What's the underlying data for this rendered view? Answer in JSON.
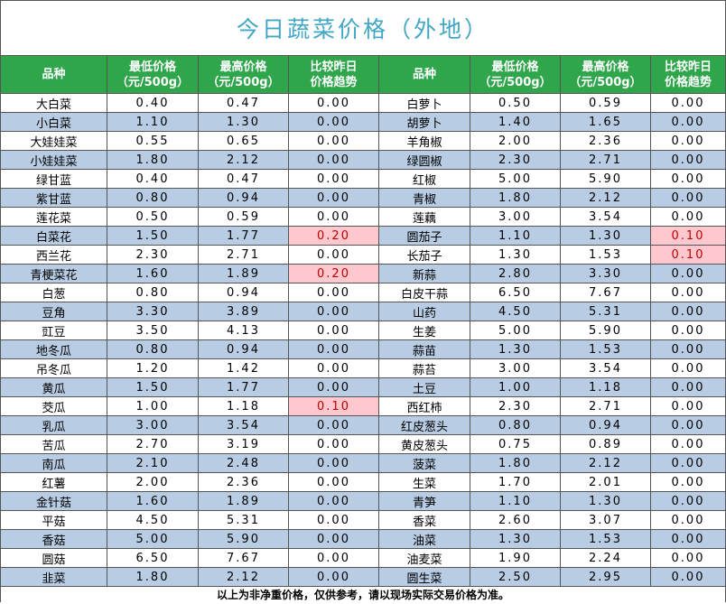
{
  "title": "今日蔬菜价格（外地）",
  "table": {
    "header": [
      [
        "品种"
      ],
      [
        "最低价格",
        "（元/500g）"
      ],
      [
        "最高价格",
        "（元/500g）"
      ],
      [
        "比较昨日",
        "价格趋势"
      ],
      [
        "品种"
      ],
      [
        "最低价格",
        "（元/500g）"
      ],
      [
        "最高价格",
        "（元/500g）"
      ],
      [
        "比较昨日",
        "价格趋势"
      ]
    ],
    "rows": [
      [
        "大白菜",
        "0.40",
        "0.47",
        "0.00",
        "白萝卜",
        "0.50",
        "0.59",
        "0.00"
      ],
      [
        "小白菜",
        "1.10",
        "1.30",
        "0.00",
        "胡萝卜",
        "1.40",
        "1.65",
        "0.00"
      ],
      [
        "大娃娃菜",
        "0.55",
        "0.65",
        "0.00",
        "羊角椒",
        "2.00",
        "2.36",
        "0.00"
      ],
      [
        "小娃娃菜",
        "1.80",
        "2.12",
        "0.00",
        "绿圆椒",
        "2.30",
        "2.71",
        "0.00"
      ],
      [
        "绿甘蓝",
        "0.40",
        "0.47",
        "0.00",
        "红椒",
        "5.00",
        "5.90",
        "0.00"
      ],
      [
        "紫甘蓝",
        "0.80",
        "0.94",
        "0.00",
        "青椒",
        "1.80",
        "2.12",
        "0.00"
      ],
      [
        "莲花菜",
        "0.50",
        "0.59",
        "0.00",
        "莲藕",
        "3.00",
        "3.54",
        "0.00"
      ],
      [
        "白菜花",
        "1.50",
        "1.77",
        "0.20",
        "圆茄子",
        "1.10",
        "1.30",
        "0.10"
      ],
      [
        "西兰花",
        "2.30",
        "2.71",
        "0.00",
        "长茄子",
        "1.30",
        "1.53",
        "0.10"
      ],
      [
        "青梗菜花",
        "1.60",
        "1.89",
        "0.20",
        "新蒜",
        "2.80",
        "3.30",
        "0.00"
      ],
      [
        "白葱",
        "0.80",
        "0.94",
        "0.00",
        "白皮干蒜",
        "6.50",
        "7.67",
        "0.00"
      ],
      [
        "豆角",
        "3.30",
        "3.89",
        "0.00",
        "山药",
        "4.50",
        "5.31",
        "0.00"
      ],
      [
        "豇豆",
        "3.50",
        "4.13",
        "0.00",
        "生姜",
        "5.00",
        "5.90",
        "0.00"
      ],
      [
        "地冬瓜",
        "0.80",
        "0.94",
        "0.00",
        "蒜苗",
        "1.30",
        "1.53",
        "0.00"
      ],
      [
        "吊冬瓜",
        "1.20",
        "1.42",
        "0.00",
        "蒜苔",
        "3.00",
        "3.54",
        "0.00"
      ],
      [
        "黄瓜",
        "1.50",
        "1.77",
        "0.00",
        "土豆",
        "1.00",
        "1.18",
        "0.00"
      ],
      [
        "茭瓜",
        "1.00",
        "1.18",
        "0.10",
        "西红柿",
        "2.30",
        "2.71",
        "0.00"
      ],
      [
        "乳瓜",
        "3.00",
        "3.54",
        "0.00",
        "红皮葱头",
        "0.80",
        "0.94",
        "0.00"
      ],
      [
        "苦瓜",
        "2.70",
        "3.19",
        "0.00",
        "黄皮葱头",
        "0.75",
        "0.89",
        "0.00"
      ],
      [
        "南瓜",
        "2.10",
        "2.48",
        "0.00",
        "菠菜",
        "1.80",
        "2.12",
        "0.00"
      ],
      [
        "红薯",
        "2.00",
        "2.36",
        "0.00",
        "生菜",
        "1.70",
        "2.01",
        "0.00"
      ],
      [
        "金针菇",
        "1.60",
        "1.89",
        "0.00",
        "青笋",
        "1.10",
        "1.30",
        "0.00"
      ],
      [
        "平菇",
        "4.50",
        "5.31",
        "0.00",
        "香菜",
        "2.60",
        "3.07",
        "0.00"
      ],
      [
        "香菇",
        "5.00",
        "5.90",
        "0.00",
        "油菜",
        "1.30",
        "1.53",
        "0.00"
      ],
      [
        "圆菇",
        "6.50",
        "7.67",
        "0.00",
        "油麦菜",
        "1.90",
        "2.24",
        "0.00"
      ],
      [
        "韭菜",
        "1.80",
        "2.12",
        "0.00",
        "圆生菜",
        "2.50",
        "2.95",
        "0.00"
      ]
    ]
  },
  "footer": "以上为非净重价格，仅供参考，请以现场实际交易价格为准。"
}
